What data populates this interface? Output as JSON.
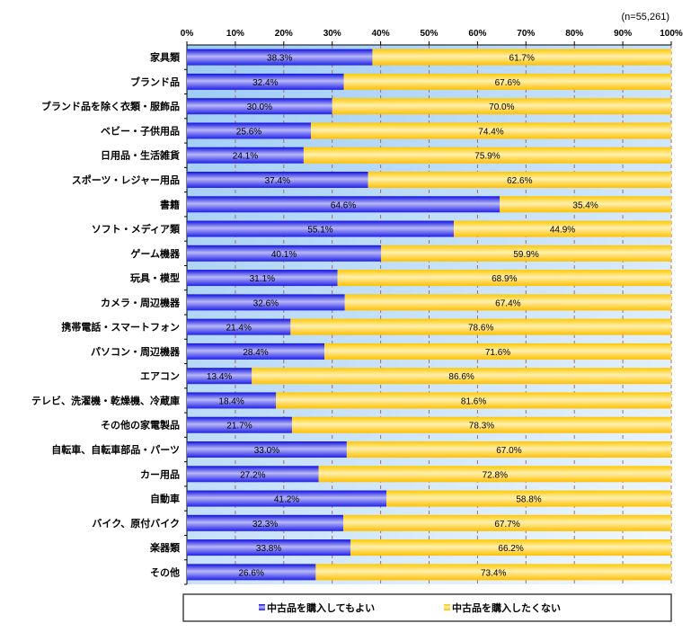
{
  "chart_data": {
    "type": "bar",
    "orientation": "horizontal",
    "stacked": true,
    "note": "(n=55,261)",
    "categories": [
      "家具類",
      "ブランド品",
      "ブランド品を除く衣類・服飾品",
      "ベビー・子供用品",
      "日用品・生活雑貨",
      "スポーツ・レジャー用品",
      "書籍",
      "ソフト・メディア類",
      "ゲーム機器",
      "玩具・模型",
      "カメラ・周辺機器",
      "携帯電話・スマートフォン",
      "パソコン・周辺機器",
      "エアコン",
      "テレビ、洗濯機・乾燥機、冷蔵庫",
      "その他の家電製品",
      "自転車、自転車部品・パーツ",
      "カー用品",
      "自動車",
      "バイク、原付バイク",
      "楽器類",
      "その他"
    ],
    "series": [
      {
        "name": "中古品を購入してもよい",
        "color": "#3a3aee",
        "values": [
          38.3,
          32.4,
          30.0,
          25.6,
          24.1,
          37.4,
          64.6,
          55.1,
          40.1,
          31.1,
          32.6,
          21.4,
          28.4,
          13.4,
          18.4,
          21.7,
          33.0,
          27.2,
          41.2,
          32.3,
          33.8,
          26.6
        ]
      },
      {
        "name": "中古品を購入したくない",
        "color": "#ffd23a",
        "values": [
          61.7,
          67.6,
          70.0,
          74.4,
          75.9,
          62.6,
          35.4,
          44.9,
          59.9,
          68.9,
          67.4,
          78.6,
          71.6,
          86.6,
          81.6,
          78.3,
          67.0,
          72.8,
          58.8,
          67.7,
          66.2,
          73.4
        ]
      }
    ],
    "xlim": [
      0,
      100
    ],
    "xticks": [
      "0%",
      "10%",
      "20%",
      "30%",
      "40%",
      "50%",
      "60%",
      "70%",
      "80%",
      "90%",
      "100%"
    ],
    "axis_position": "top",
    "grid": true,
    "legend_position": "bottom",
    "value_format": "percent, one decimal"
  }
}
